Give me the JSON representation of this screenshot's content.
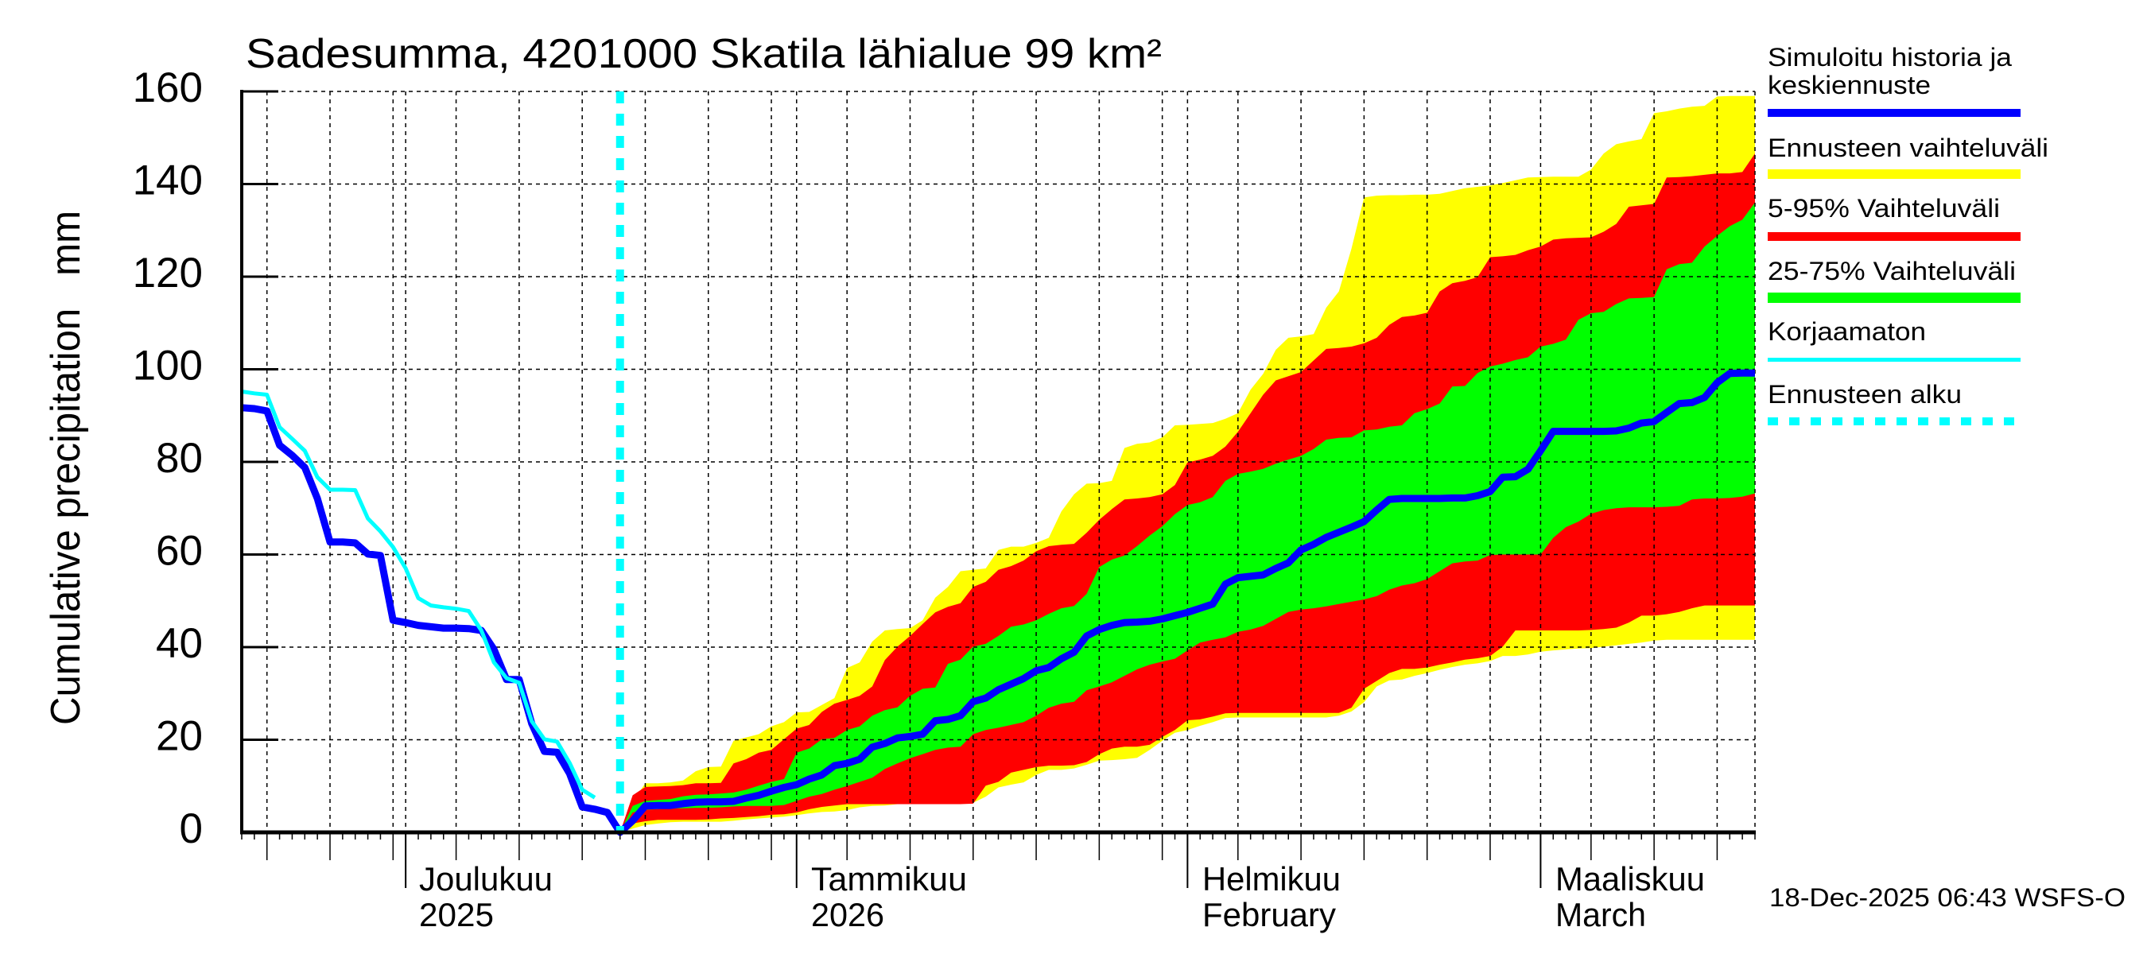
{
  "chart_data": {
    "type": "area",
    "title": "Sadesumma, 4201000 Skatila lähialue 99 km²",
    "xlabel": "",
    "ylabel": "Cumulative precipitation   mm",
    "ylim": [
      0,
      160
    ],
    "yticks": [
      0,
      20,
      40,
      60,
      80,
      100,
      120,
      140,
      160
    ],
    "x_start": "2025-11-18",
    "x_end": "2026-03-18",
    "forecast_start": "2025-12-18",
    "grid": true,
    "month_labels": [
      {
        "date": "2025-12-01",
        "line1": "Joulukuu",
        "line2": "2025"
      },
      {
        "date": "2026-01-01",
        "line1": "Tammikuu",
        "line2": "2026"
      },
      {
        "date": "2026-02-01",
        "line1": "Helmikuu",
        "line2": "February"
      },
      {
        "date": "2026-03-01",
        "line1": "Maaliskuu",
        "line2": "March"
      }
    ],
    "legend_position": "right",
    "legend": [
      {
        "lines": [
          "Simuloitu historia ja",
          "keskiennuste"
        ],
        "color": "#0000ff",
        "style": "thick-line"
      },
      {
        "lines": [
          "Ennusteen vaihteluväli"
        ],
        "color": "#ffff00",
        "style": "band"
      },
      {
        "lines": [
          "5-95% Vaihteluväli"
        ],
        "color": "#ff0000",
        "style": "band"
      },
      {
        "lines": [
          "25-75% Vaihteluväli"
        ],
        "color": "#00ff00",
        "style": "band"
      },
      {
        "lines": [
          "Korjaamaton"
        ],
        "color": "#00ffff",
        "style": "thin-line"
      },
      {
        "lines": [
          "Ennusteen alku"
        ],
        "color": "#00ffff",
        "style": "dashed-line"
      }
    ],
    "bands": [
      {
        "legend": 1,
        "color": "#ffff00",
        "start": "2025-12-18",
        "upper": [
          0,
          6.6,
          10.6,
          10.6,
          10.8,
          11.2,
          13.2,
          14.1,
          14.2,
          19.8,
          20.5,
          21.2,
          22.9,
          23.8,
          25.9,
          26,
          27.5,
          29,
          35.5,
          36.7,
          41.2,
          43.6,
          43.9,
          44.1,
          45.8,
          50.7,
          53,
          56.4,
          56.7,
          57,
          61,
          61.7,
          61.7,
          62.5,
          63.6,
          69.3,
          73,
          75.3,
          75.4,
          75.9,
          83,
          83.9,
          84.2,
          85.3,
          87.9,
          88,
          88.2,
          88.4,
          89.3,
          90.5,
          95.6,
          99,
          104.2,
          106.8,
          107.1,
          107.6,
          113.3,
          116.8,
          126,
          137.1,
          137.5,
          137.6,
          137.6,
          137.7,
          137.7,
          137.9,
          138.5,
          139.1,
          139.4,
          139.7,
          140.2,
          140.8,
          141.4,
          141.5,
          141.6,
          141.6,
          141.6,
          143.1,
          146.6,
          148.6,
          149.2,
          149.7,
          155.3,
          155.7,
          156.3,
          156.7,
          156.9,
          158.9,
          159,
          159,
          159
        ],
        "lower": [
          0,
          0.8,
          1.6,
          1.9,
          2.2,
          2.3,
          2.3,
          2.3,
          2.3,
          2.5,
          2.8,
          3,
          3.2,
          3.4,
          3.7,
          4.1,
          4.4,
          4.5,
          4.8,
          5.4,
          5.7,
          5.8,
          6.1,
          6.1,
          6.1,
          6.1,
          6.1,
          6.4,
          6.4,
          7.7,
          9.7,
          10.3,
          10.8,
          12.4,
          13.5,
          13.5,
          13.8,
          14.6,
          15.5,
          15.6,
          15.8,
          16.1,
          17.8,
          19.8,
          21.5,
          22.1,
          23,
          23.8,
          24.7,
          24.8,
          24.8,
          24.8,
          24.8,
          24.8,
          24.8,
          24.8,
          24.8,
          25.2,
          26.1,
          28.1,
          31.5,
          32.8,
          33,
          33.8,
          34.4,
          35.1,
          35.7,
          36.2,
          36.5,
          37,
          38.1,
          38.1,
          38.4,
          39,
          39.3,
          39.5,
          39.7,
          39.8,
          40.1,
          40.4,
          40.7,
          41,
          41.4,
          41.6,
          41.6,
          41.6,
          41.6,
          41.6,
          41.6,
          41.6,
          41.6
        ]
      },
      {
        "legend": 2,
        "color": "#ff0000",
        "start": "2025-12-18",
        "upper": [
          0,
          8,
          9.8,
          9.9,
          10,
          10.2,
          10.6,
          10.6,
          10.7,
          14.9,
          15.8,
          17.2,
          17.8,
          20.1,
          22.4,
          23.2,
          26,
          27.8,
          28.6,
          29.5,
          31.5,
          37.2,
          40.1,
          42.4,
          45,
          47.5,
          48.7,
          49.5,
          53,
          54.1,
          56.7,
          57.5,
          58.7,
          60.7,
          61.8,
          62.1,
          62.3,
          64.7,
          67.5,
          69.8,
          71.9,
          72.1,
          72.4,
          73,
          75,
          79.9,
          80.5,
          81.3,
          83.3,
          86.5,
          90.5,
          94.5,
          97.6,
          98.5,
          99.4,
          101.9,
          104.4,
          104.6,
          104.9,
          105.6,
          106.8,
          109.6,
          111.3,
          111.6,
          112.2,
          116.8,
          118.6,
          119.1,
          119.9,
          124.2,
          124.4,
          124.7,
          125.7,
          126.5,
          128,
          128.3,
          128.4,
          128.5,
          129.7,
          131.4,
          135.1,
          135.4,
          135.7,
          141.4,
          141.5,
          141.7,
          142,
          142.3,
          142.3,
          142.6,
          146.6
        ],
        "lower": [
          0,
          1.9,
          2.4,
          2.7,
          2.7,
          2.7,
          2.7,
          2.8,
          3,
          3.1,
          3.3,
          3.5,
          3.8,
          3.9,
          4.3,
          5,
          5.5,
          5.8,
          6.1,
          6.1,
          6.1,
          6.1,
          6.1,
          6.1,
          6.1,
          6.1,
          6.1,
          6.1,
          6.2,
          10.1,
          10.9,
          12.9,
          13.5,
          14.1,
          14.4,
          14.4,
          14.5,
          15.2,
          16.9,
          18.1,
          18.5,
          18.5,
          18.9,
          20.6,
          22.1,
          24.2,
          24.4,
          25,
          25.7,
          25.8,
          25.8,
          25.8,
          25.8,
          25.8,
          25.8,
          25.8,
          25.8,
          25.8,
          26.9,
          31,
          32.7,
          34.4,
          35.3,
          35.3,
          35.6,
          36.2,
          36.7,
          37.3,
          37.6,
          38.1,
          40.1,
          43.6,
          43.6,
          43.6,
          43.6,
          43.6,
          43.6,
          43.7,
          43.9,
          44.2,
          45.3,
          46.8,
          46.8,
          47.1,
          47.6,
          48.4,
          49,
          49,
          49,
          49,
          49
        ]
      },
      {
        "legend": 3,
        "color": "#00ff00",
        "start": "2025-12-18",
        "upper": [
          0,
          5.7,
          6.8,
          7,
          7.2,
          7.8,
          8.1,
          8.2,
          8.4,
          8.6,
          9.2,
          10.1,
          10.9,
          11.5,
          17.2,
          18.1,
          20.1,
          20.4,
          22.1,
          22.9,
          25.2,
          26.4,
          27,
          29.5,
          31,
          31.3,
          36.4,
          37.3,
          40.1,
          40.7,
          42.4,
          44.4,
          44.9,
          45.8,
          47.2,
          48.4,
          48.9,
          51.5,
          57.3,
          58.9,
          59.8,
          61.8,
          64.1,
          66.1,
          68.7,
          70.7,
          71.3,
          72.4,
          75.9,
          77.4,
          77.9,
          78.5,
          79.6,
          80.5,
          81.3,
          82.8,
          84.8,
          85.2,
          85.3,
          86.8,
          87,
          87.6,
          87.9,
          90.5,
          91.4,
          92.6,
          96.3,
          96.4,
          99.2,
          100.6,
          101.2,
          102,
          102.6,
          104.9,
          105.5,
          106.4,
          110.7,
          112.1,
          112.4,
          114.1,
          115.3,
          115.4,
          115.6,
          121.6,
          122.7,
          123,
          126.5,
          128.8,
          130.9,
          132.3,
          136
        ],
        "lower": [
          0,
          4.3,
          4.9,
          5,
          5.2,
          5.2,
          5.3,
          5.3,
          5.4,
          5.6,
          5.7,
          5.7,
          5.7,
          5.9,
          6.8,
          7.7,
          8.3,
          9.2,
          10,
          10.9,
          11.8,
          13.7,
          14.9,
          16,
          16.9,
          17.8,
          18.3,
          18.5,
          21.2,
          22.1,
          22.6,
          23.2,
          23.8,
          25.2,
          26.9,
          27.8,
          28.2,
          30.7,
          31.5,
          32.4,
          33.8,
          35.2,
          36.2,
          36.9,
          37.5,
          39.3,
          41,
          41.6,
          42.1,
          43.3,
          43.8,
          44.6,
          46.1,
          47.6,
          48.1,
          48.4,
          48.8,
          49.3,
          49.8,
          50.3,
          51,
          52.4,
          53.3,
          53.8,
          54.7,
          56.4,
          58.1,
          58.5,
          58.7,
          59.9,
          60,
          60,
          60,
          60,
          63.6,
          65.9,
          67.1,
          68.8,
          69.6,
          70,
          70.2,
          70.2,
          70.2,
          70.3,
          70.5,
          71.9,
          72.1,
          72.1,
          72.2,
          72.5,
          73.2
        ]
      }
    ],
    "series": [
      {
        "legend": 0,
        "color": "#0000ff",
        "start": "2025-11-18",
        "values": [
          91.7,
          91.5,
          91,
          83.6,
          81.4,
          78.8,
          72.1,
          62.7,
          62.7,
          62.5,
          60.1,
          59.8,
          45.8,
          45.3,
          44.7,
          44.4,
          44.1,
          44.1,
          44,
          43.6,
          39.5,
          33,
          33,
          23.5,
          17.5,
          17.3,
          12.7,
          5.5,
          5,
          4.3,
          0,
          2.5,
          5.7,
          5.8,
          5.8,
          6.2,
          6.5,
          6.6,
          6.6,
          6.7,
          7.4,
          8,
          8.9,
          9.7,
          10.3,
          11.5,
          12.4,
          14.4,
          14.9,
          15.8,
          18.4,
          19.2,
          20.4,
          20.7,
          21.2,
          24.1,
          24.4,
          25.2,
          28.2,
          29,
          30.8,
          32,
          33.2,
          34.9,
          35.6,
          37.5,
          38.9,
          42.4,
          43.8,
          44.7,
          45.3,
          45.4,
          45.6,
          46.1,
          46.8,
          47.5,
          48.4,
          49.3,
          53.6,
          55,
          55.3,
          55.6,
          57,
          58.2,
          61,
          62.2,
          63.7,
          64.8,
          65.9,
          67.1,
          69.6,
          71.9,
          72.1,
          72.1,
          72.1,
          72.1,
          72.2,
          72.2,
          72.7,
          73.6,
          76.7,
          76.8,
          78.4,
          82.4,
          86.6,
          86.6,
          86.6,
          86.6,
          86.6,
          86.7,
          87.3,
          88.4,
          88.7,
          90.7,
          92.6,
          92.8,
          93.9,
          97.1,
          99.1,
          99.2,
          99.2
        ]
      },
      {
        "legend": 4,
        "color": "#00ffff",
        "start": "2025-11-18",
        "values": [
          95.2,
          94.8,
          94.5,
          87.5,
          85,
          82.4,
          76.7,
          74,
          74,
          73.9,
          67.8,
          65,
          61.6,
          57,
          50.6,
          49,
          48.6,
          48.3,
          47.8,
          43.6,
          36.7,
          33.3,
          32.3,
          24,
          20.1,
          19.6,
          15,
          9.2,
          7.5
        ]
      }
    ]
  },
  "timestamp": "18-Dec-2025 06:43 WSFS-O"
}
